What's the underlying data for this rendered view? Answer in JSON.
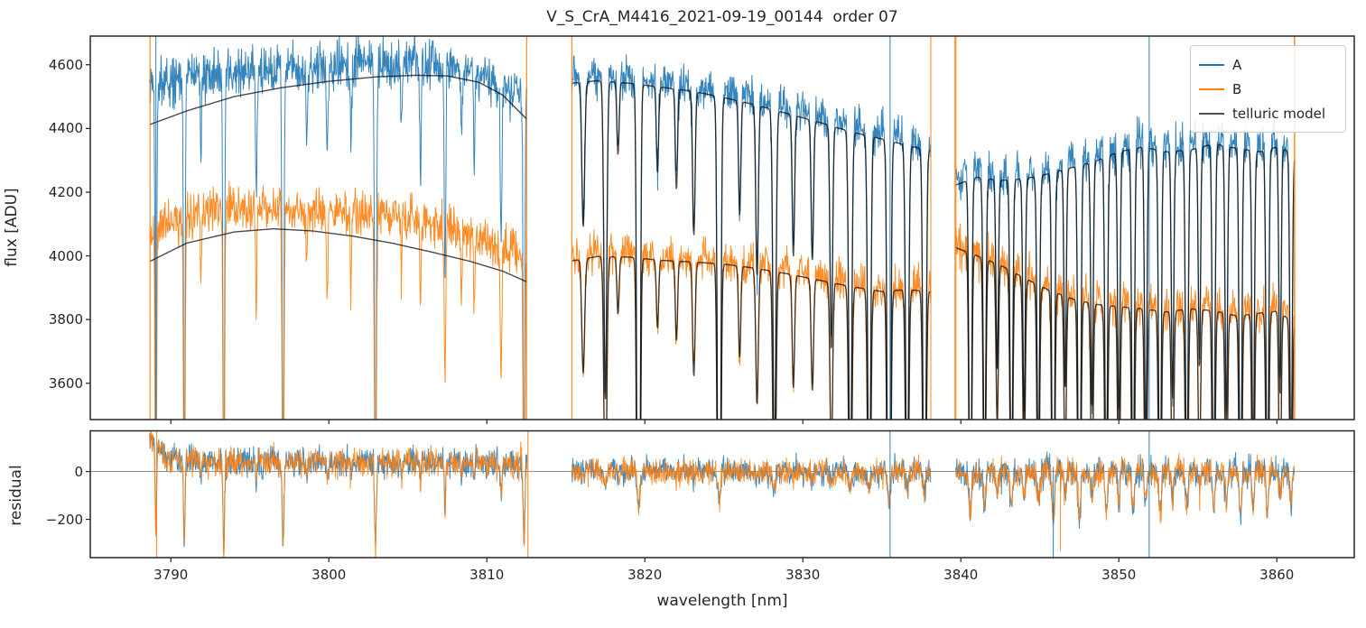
{
  "title": "V_S_CrA_M4416_2021-09-19_00144  order 07",
  "legend": {
    "items": [
      {
        "label": "A",
        "color": "#1f77b4"
      },
      {
        "label": "B",
        "color": "#ff7f0e"
      },
      {
        "label": "telluric model",
        "color": "#4d4d4d"
      }
    ]
  },
  "chart_data": {
    "type": "line",
    "title": "V_S_CrA_M4416_2021-09-19_00144  order 07",
    "xlabel": "wavelength [nm]",
    "x_lim": [
      3784.9,
      3864.9
    ],
    "x_ticks": [
      3790,
      3800,
      3810,
      3820,
      3830,
      3840,
      3850,
      3860
    ],
    "grid": false,
    "legend_position": "upper right",
    "panels": {
      "flux": {
        "ylabel": "flux [ADU]",
        "ylim": [
          3486,
          4690
        ],
        "yticks": [
          3600,
          3800,
          4000,
          4200,
          4400,
          4600
        ]
      },
      "residual": {
        "ylabel": "residual",
        "ylim": [
          -360,
          170
        ],
        "yticks": [
          -200,
          0
        ],
        "zero_line": true
      }
    },
    "series_colors": {
      "A": "#1f77b4",
      "B": "#ff7f0e",
      "model": "#4a4a4a"
    },
    "segments": [
      {
        "x_range": [
          3788.65,
          3812.55
        ],
        "seed": 11,
        "A_continuum": [
          [
            3788.65,
            4530
          ],
          [
            3790,
            4565
          ],
          [
            3793,
            4575
          ],
          [
            3796,
            4580
          ],
          [
            3799,
            4590
          ],
          [
            3802,
            4600
          ],
          [
            3805,
            4605
          ],
          [
            3807.5,
            4595
          ],
          [
            3809.5,
            4575
          ],
          [
            3811,
            4540
          ],
          [
            3812.55,
            4495
          ]
        ],
        "B_continuum": [
          [
            3788.65,
            4075
          ],
          [
            3790,
            4120
          ],
          [
            3793,
            4145
          ],
          [
            3796,
            4150
          ],
          [
            3799,
            4140
          ],
          [
            3802,
            4130
          ],
          [
            3805,
            4120
          ],
          [
            3808,
            4085
          ],
          [
            3810,
            4045
          ],
          [
            3812.55,
            4000
          ]
        ],
        "model_A": [
          [
            3788.65,
            4412
          ],
          [
            3791,
            4455
          ],
          [
            3794,
            4500
          ],
          [
            3797,
            4528
          ],
          [
            3800,
            4548
          ],
          [
            3803,
            4562
          ],
          [
            3805.5,
            4567
          ],
          [
            3807.5,
            4565
          ],
          [
            3809.5,
            4545
          ],
          [
            3811,
            4505
          ],
          [
            3812.55,
            4428
          ]
        ],
        "model_B": [
          [
            3788.65,
            3982
          ],
          [
            3791,
            4040
          ],
          [
            3794,
            4075
          ],
          [
            3796.5,
            4085
          ],
          [
            3799,
            4078
          ],
          [
            3801.5,
            4062
          ],
          [
            3804,
            4040
          ],
          [
            3806.5,
            4012
          ],
          [
            3809,
            3982
          ],
          [
            3811,
            3952
          ],
          [
            3812.55,
            3918
          ]
        ],
        "model_has_lines": false,
        "noise_A": 38,
        "noise_B": 34,
        "lines": [
          [
            3789.05,
            0.32,
            0.045
          ],
          [
            3790.85,
            0.3,
            0.05
          ],
          [
            3791.9,
            0.06,
            0.04
          ],
          [
            3793.35,
            0.32,
            0.05
          ],
          [
            3795.4,
            0.08,
            0.045
          ],
          [
            3797.1,
            0.3,
            0.055
          ],
          [
            3798.6,
            0.05,
            0.04
          ],
          [
            3799.9,
            0.07,
            0.045
          ],
          [
            3801.4,
            0.06,
            0.04
          ],
          [
            3802.95,
            0.32,
            0.055
          ],
          [
            3804.6,
            0.05,
            0.04
          ],
          [
            3805.8,
            0.08,
            0.045
          ],
          [
            3807.35,
            0.14,
            0.05
          ],
          [
            3808.4,
            0.05,
            0.04
          ],
          [
            3809.2,
            0.07,
            0.04
          ],
          [
            3810.9,
            0.11,
            0.05
          ],
          [
            3812.35,
            0.3,
            0.05
          ]
        ],
        "residual": {
          "base": [
            [
              3788.65,
              150
            ],
            [
              3789.6,
              60
            ],
            [
              3791,
              45
            ],
            [
              3795,
              40
            ],
            [
              3800,
              42
            ],
            [
              3806,
              40
            ],
            [
              3810,
              35
            ],
            [
              3812.55,
              30
            ]
          ],
          "sigma": 30,
          "spike_scale": 1150
        }
      },
      {
        "x_range": [
          3815.38,
          3838.1
        ],
        "seed": 23,
        "A_continuum": [
          [
            3815.38,
            4560
          ],
          [
            3817,
            4568
          ],
          [
            3819,
            4560
          ],
          [
            3821,
            4548
          ],
          [
            3823,
            4535
          ],
          [
            3825,
            4515
          ],
          [
            3827,
            4492
          ],
          [
            3829,
            4465
          ],
          [
            3831,
            4438
          ],
          [
            3833,
            4408
          ],
          [
            3835,
            4385
          ],
          [
            3837,
            4360
          ],
          [
            3838.1,
            4350
          ]
        ],
        "B_continuum": [
          [
            3815.38,
            3998
          ],
          [
            3817,
            4012
          ],
          [
            3819,
            4010
          ],
          [
            3821,
            4000
          ],
          [
            3823,
            3995
          ],
          [
            3825,
            3988
          ],
          [
            3827,
            3975
          ],
          [
            3829,
            3958
          ],
          [
            3831,
            3938
          ],
          [
            3833,
            3918
          ],
          [
            3835,
            3902
          ],
          [
            3836.5,
            3908
          ],
          [
            3838.1,
            3902
          ]
        ],
        "model_A": [
          [
            3815.38,
            4542
          ],
          [
            3817,
            4550
          ],
          [
            3819,
            4542
          ],
          [
            3821,
            4530
          ],
          [
            3823,
            4517
          ],
          [
            3825,
            4497
          ],
          [
            3827,
            4474
          ],
          [
            3829,
            4447
          ],
          [
            3831,
            4420
          ],
          [
            3833,
            4390
          ],
          [
            3835,
            4367
          ],
          [
            3837,
            4342
          ],
          [
            3838.1,
            4332
          ]
        ],
        "model_B": [
          [
            3815.38,
            3984
          ],
          [
            3817,
            3998
          ],
          [
            3819,
            3996
          ],
          [
            3821,
            3986
          ],
          [
            3823,
            3981
          ],
          [
            3825,
            3974
          ],
          [
            3827,
            3961
          ],
          [
            3829,
            3944
          ],
          [
            3831,
            3924
          ],
          [
            3833,
            3904
          ],
          [
            3835,
            3888
          ],
          [
            3836.5,
            3894
          ],
          [
            3838.1,
            3888
          ]
        ],
        "model_has_lines": true,
        "noise_A": 30,
        "noise_B": 30,
        "lines": [
          [
            3816.1,
            0.1,
            0.09
          ],
          [
            3817.5,
            0.22,
            0.09
          ],
          [
            3818.3,
            0.05,
            0.07
          ],
          [
            3819.6,
            0.62,
            0.085
          ],
          [
            3820.8,
            0.06,
            0.07
          ],
          [
            3822.0,
            0.07,
            0.07
          ],
          [
            3823.1,
            0.1,
            0.08
          ],
          [
            3824.7,
            0.48,
            0.09
          ],
          [
            3826.0,
            0.08,
            0.07
          ],
          [
            3827.1,
            0.12,
            0.08
          ],
          [
            3828.2,
            0.26,
            0.09
          ],
          [
            3829.4,
            0.1,
            0.075
          ],
          [
            3830.6,
            0.1,
            0.075
          ],
          [
            3831.8,
            0.16,
            0.08
          ],
          [
            3833.0,
            0.28,
            0.09
          ],
          [
            3834.2,
            0.3,
            0.09
          ],
          [
            3835.45,
            0.5,
            0.09
          ],
          [
            3836.6,
            0.28,
            0.09
          ],
          [
            3837.7,
            0.34,
            0.09
          ]
        ],
        "residual": {
          "base": [
            [
              3815.38,
              2
            ],
            [
              3838.1,
              0
            ]
          ],
          "sigma": 26,
          "spike_scale": 250
        }
      },
      {
        "x_range": [
          3839.66,
          3861.12
        ],
        "seed": 37,
        "A_continuum": [
          [
            3839.66,
            4240
          ],
          [
            3841,
            4265
          ],
          [
            3842.5,
            4255
          ],
          [
            3844,
            4260
          ],
          [
            3845.5,
            4275
          ],
          [
            3847,
            4295
          ],
          [
            3848.5,
            4315
          ],
          [
            3850,
            4345
          ],
          [
            3851.5,
            4360
          ],
          [
            3853,
            4345
          ],
          [
            3854.5,
            4350
          ],
          [
            3856,
            4370
          ],
          [
            3857.5,
            4355
          ],
          [
            3859,
            4345
          ],
          [
            3860,
            4360
          ],
          [
            3861.12,
            4340
          ]
        ],
        "B_continuum": [
          [
            3839.66,
            4040
          ],
          [
            3841,
            4015
          ],
          [
            3842.5,
            3985
          ],
          [
            3844,
            3945
          ],
          [
            3845.5,
            3908
          ],
          [
            3847,
            3880
          ],
          [
            3848.5,
            3862
          ],
          [
            3850,
            3855
          ],
          [
            3851.5,
            3848
          ],
          [
            3853,
            3838
          ],
          [
            3854.5,
            3848
          ],
          [
            3856,
            3842
          ],
          [
            3857.5,
            3825
          ],
          [
            3859,
            3835
          ],
          [
            3860,
            3840
          ],
          [
            3861.12,
            3805
          ]
        ],
        "model_A": [
          [
            3839.66,
            4222
          ],
          [
            3841,
            4247
          ],
          [
            3842.5,
            4237
          ],
          [
            3844,
            4242
          ],
          [
            3845.5,
            4257
          ],
          [
            3847,
            4277
          ],
          [
            3848.5,
            4297
          ],
          [
            3850,
            4327
          ],
          [
            3851.5,
            4342
          ],
          [
            3853,
            4327
          ],
          [
            3854.5,
            4332
          ],
          [
            3856,
            4352
          ],
          [
            3857.5,
            4337
          ],
          [
            3859,
            4327
          ],
          [
            3860,
            4342
          ],
          [
            3861.12,
            4322
          ]
        ],
        "model_B": [
          [
            3839.66,
            4026
          ],
          [
            3841,
            4001
          ],
          [
            3842.5,
            3971
          ],
          [
            3844,
            3931
          ],
          [
            3845.5,
            3894
          ],
          [
            3847,
            3866
          ],
          [
            3848.5,
            3848
          ],
          [
            3850,
            3841
          ],
          [
            3851.5,
            3834
          ],
          [
            3853,
            3824
          ],
          [
            3854.5,
            3834
          ],
          [
            3856,
            3828
          ],
          [
            3857.5,
            3811
          ],
          [
            3859,
            3821
          ],
          [
            3860,
            3826
          ],
          [
            3861.12,
            3791
          ]
        ],
        "model_has_lines": true,
        "noise_A": 35,
        "noise_B": 34,
        "lines": [
          [
            3840.6,
            0.3,
            0.08
          ],
          [
            3841.5,
            0.24,
            0.08
          ],
          [
            3842.3,
            0.14,
            0.075
          ],
          [
            3843.2,
            0.26,
            0.08
          ],
          [
            3844.0,
            0.18,
            0.075
          ],
          [
            3844.9,
            0.22,
            0.08
          ],
          [
            3845.85,
            0.34,
            0.08
          ],
          [
            3846.6,
            0.16,
            0.07
          ],
          [
            3847.5,
            0.34,
            0.085
          ],
          [
            3848.3,
            0.18,
            0.075
          ],
          [
            3849.2,
            0.26,
            0.08
          ],
          [
            3850.0,
            0.2,
            0.075
          ],
          [
            3850.9,
            0.28,
            0.08
          ],
          [
            3851.7,
            0.22,
            0.075
          ],
          [
            3852.6,
            0.3,
            0.08
          ],
          [
            3853.4,
            0.18,
            0.075
          ],
          [
            3854.3,
            0.26,
            0.08
          ],
          [
            3855.1,
            0.16,
            0.07
          ],
          [
            3856.0,
            0.28,
            0.08
          ],
          [
            3856.8,
            0.2,
            0.075
          ],
          [
            3857.7,
            0.3,
            0.08
          ],
          [
            3858.5,
            0.24,
            0.075
          ],
          [
            3859.4,
            0.28,
            0.08
          ],
          [
            3860.2,
            0.18,
            0.07
          ],
          [
            3860.9,
            0.24,
            0.075
          ]
        ],
        "residual": {
          "base": [
            [
              3839.66,
              0
            ],
            [
              3861.12,
              0
            ]
          ],
          "sigma": 30,
          "spike_scale": 600
        }
      }
    ],
    "verticals": {
      "flux": [
        {
          "x": 3788.68,
          "series": "B",
          "lw": 1.3
        },
        {
          "x": 3789.05,
          "series": "A",
          "lw": 1.1
        },
        {
          "x": 3812.52,
          "series": "B",
          "lw": 1.3
        },
        {
          "x": 3815.38,
          "series": "B",
          "lw": 1.3
        },
        {
          "x": 3835.52,
          "series": "A",
          "lw": 1.1
        },
        {
          "x": 3838.1,
          "series": "B",
          "lw": 1.1
        },
        {
          "x": 3839.66,
          "series": "B",
          "lw": 2.2
        },
        {
          "x": 3851.92,
          "series": "A",
          "lw": 1.1
        },
        {
          "x": 3861.12,
          "series": "B",
          "lw": 1.6
        }
      ],
      "residual": [
        {
          "x": 3789.1,
          "series": "B",
          "lw": 1.2
        },
        {
          "x": 3812.6,
          "series": "B",
          "lw": 1.2
        },
        {
          "x": 3835.52,
          "series": "A",
          "lw": 1.1
        },
        {
          "x": 3845.85,
          "series": "A",
          "lw": 1.1,
          "from": 20
        },
        {
          "x": 3846.3,
          "series": "B",
          "lw": 1.1,
          "from": 20,
          "to": -330
        },
        {
          "x": 3851.92,
          "series": "A",
          "lw": 1.1
        }
      ]
    }
  }
}
